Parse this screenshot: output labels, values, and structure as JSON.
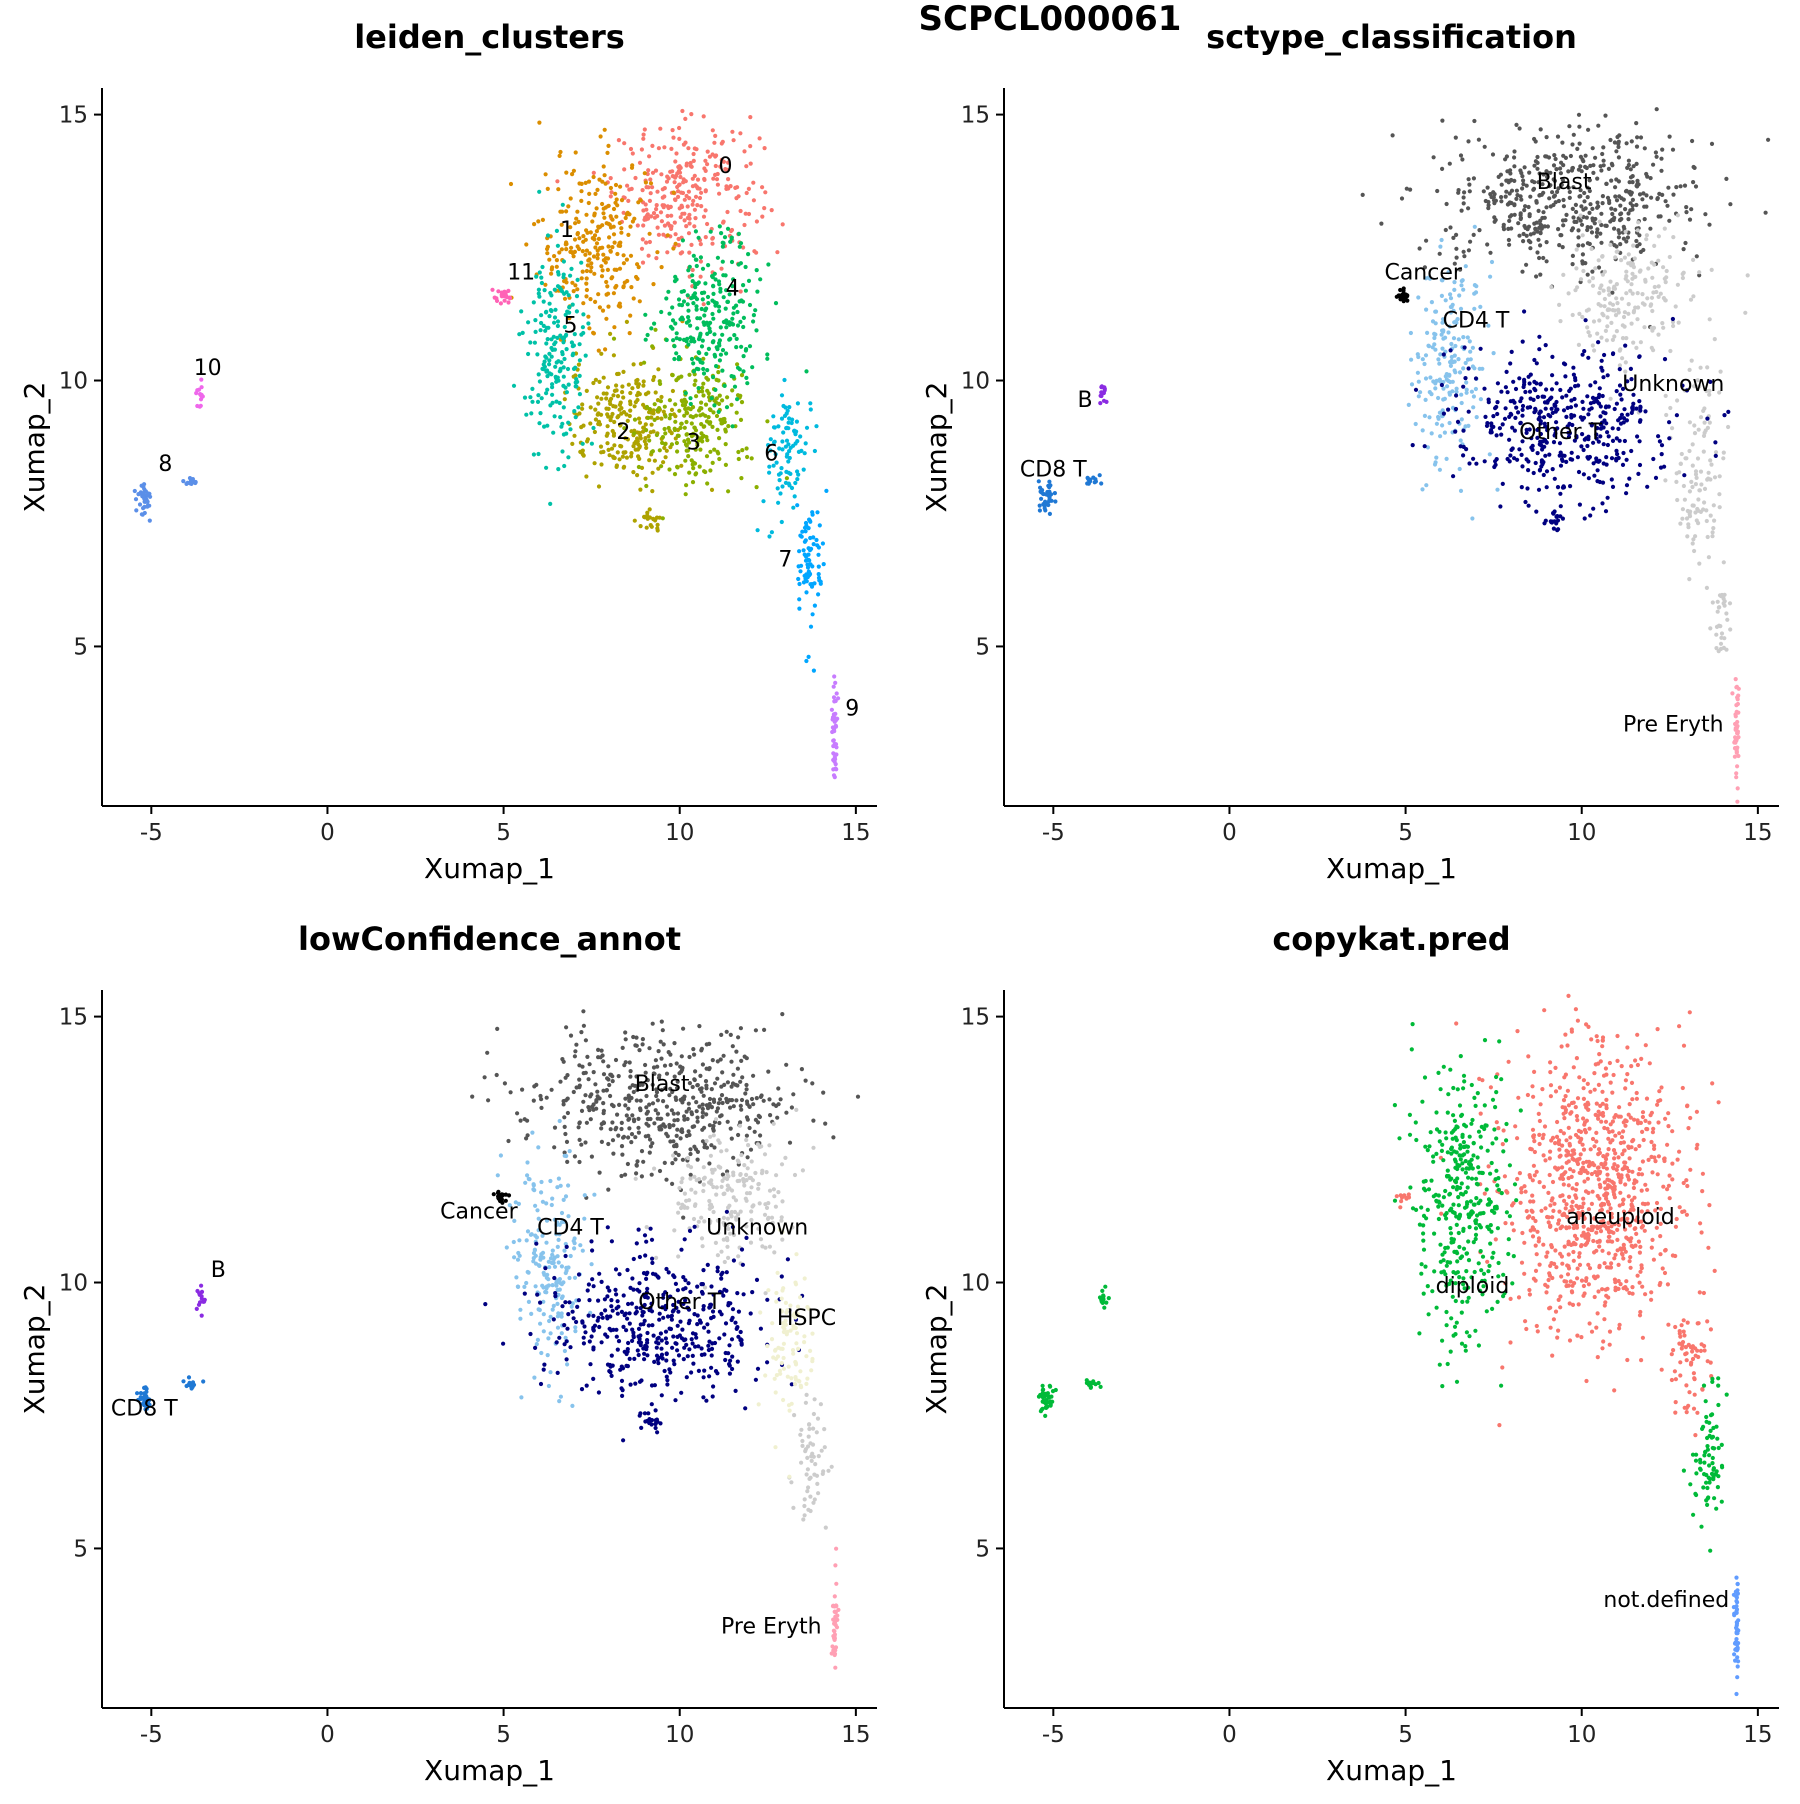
{
  "figure_title": "SCPCL000061",
  "chart_data": [
    {
      "type": "scatter",
      "title": "leiden_clusters",
      "xlabel": "Xumap_1",
      "ylabel": "Xumap_2",
      "xlim": [
        -6.4,
        15.6
      ],
      "ylim": [
        2.0,
        15.5
      ],
      "xticks": [
        -5,
        0,
        5,
        10,
        15
      ],
      "xtick_labels": [
        "-5",
        "0",
        "5",
        "10",
        "15"
      ],
      "yticks": [
        5,
        10,
        15
      ],
      "ytick_labels": [
        "5",
        "10",
        "15"
      ],
      "legend": "none",
      "groups": [
        {
          "name": "0",
          "color": "#F8766D",
          "label": "0",
          "label_pos": [
            11.3,
            13.9
          ],
          "regions": [
            [
              10.2,
              13.5,
              1.4,
              0.9,
              300
            ]
          ]
        },
        {
          "name": "1",
          "color": "#DB8E00",
          "label": "1",
          "label_pos": [
            6.8,
            12.7
          ],
          "regions": [
            [
              7.6,
              12.6,
              1.1,
              1.1,
              260
            ]
          ]
        },
        {
          "name": "2",
          "color": "#AEA200",
          "label": "2",
          "label_pos": [
            8.4,
            8.9
          ],
          "regions": [
            [
              8.5,
              9.2,
              1.1,
              0.8,
              240
            ],
            [
              9.2,
              7.4,
              0.2,
              0.15,
              20
            ]
          ]
        },
        {
          "name": "3",
          "color": "#8BAF00",
          "label": "3",
          "label_pos": [
            10.4,
            8.7
          ],
          "regions": [
            [
              10.5,
              9.2,
              1.0,
              0.8,
              230
            ]
          ]
        },
        {
          "name": "4",
          "color": "#00BD5C",
          "label": "4",
          "label_pos": [
            11.5,
            11.6
          ],
          "regions": [
            [
              10.9,
              11.2,
              1.0,
              1.0,
              260
            ]
          ]
        },
        {
          "name": "5",
          "color": "#00C1A7",
          "label": "5",
          "label_pos": [
            6.9,
            10.9
          ],
          "regions": [
            [
              6.5,
              10.6,
              0.6,
              1.2,
              200
            ]
          ]
        },
        {
          "name": "6",
          "color": "#00BADE",
          "label": "6",
          "label_pos": [
            12.6,
            8.5
          ],
          "regions": [
            [
              13.1,
              8.6,
              0.4,
              0.8,
              90
            ]
          ]
        },
        {
          "name": "7",
          "color": "#00A6FF",
          "label": "7",
          "label_pos": [
            13.0,
            6.5
          ],
          "regions": [
            [
              13.7,
              6.6,
              0.25,
              0.9,
              80
            ]
          ]
        },
        {
          "name": "8",
          "color": "#5B8FE8",
          "label": "8",
          "label_pos": [
            -4.6,
            8.3
          ],
          "regions": [
            [
              -5.2,
              7.8,
              0.15,
              0.2,
              40
            ],
            [
              -3.9,
              8.1,
              0.15,
              0.07,
              14
            ]
          ]
        },
        {
          "name": "9",
          "color": "#C77CFF",
          "label": "9",
          "label_pos": [
            14.9,
            3.7
          ],
          "regions": [
            [
              14.4,
              3.5,
              0.05,
              0.7,
              45
            ]
          ]
        },
        {
          "name": "10",
          "color": "#EF67EB",
          "label": "10",
          "label_pos": [
            -3.4,
            10.1
          ],
          "regions": [
            [
              -3.6,
              9.7,
              0.08,
              0.15,
              14
            ]
          ]
        },
        {
          "name": "11",
          "color": "#FF63B6",
          "label": "11",
          "label_pos": [
            5.5,
            11.9
          ],
          "regions": [
            [
              4.95,
              11.6,
              0.15,
              0.08,
              22
            ]
          ]
        }
      ]
    },
    {
      "type": "scatter",
      "title": "sctype_classification",
      "xlabel": "Xumap_1",
      "ylabel": "Xumap_2",
      "xlim": [
        -6.4,
        15.6
      ],
      "ylim": [
        2.0,
        15.5
      ],
      "xticks": [
        -5,
        0,
        5,
        10,
        15
      ],
      "xtick_labels": [
        "-5",
        "0",
        "5",
        "10",
        "15"
      ],
      "yticks": [
        5,
        10,
        15
      ],
      "ytick_labels": [
        "5",
        "10",
        "15"
      ],
      "legend": "none",
      "groups": [
        {
          "name": "Blast",
          "color": "#555555",
          "label": "Blast",
          "label_pos": [
            9.5,
            13.6
          ],
          "regions": [
            [
              9.6,
              13.4,
              2.5,
              0.9,
              520
            ]
          ]
        },
        {
          "name": "Unknown",
          "color": "#CCCCCC",
          "label": "Unknown",
          "label_pos": [
            12.6,
            9.8
          ],
          "regions": [
            [
              11.3,
              11.6,
              1.2,
              0.8,
              200
            ],
            [
              13.3,
              8.3,
              0.5,
              1.4,
              120
            ],
            [
              14.0,
              5.6,
              0.15,
              0.6,
              30
            ]
          ]
        },
        {
          "name": "CD4 T",
          "color": "#87C3EC",
          "label": "CD4 T",
          "label_pos": [
            7.0,
            11.0
          ],
          "regions": [
            [
              6.3,
              10.3,
              0.7,
              1.3,
              200
            ]
          ]
        },
        {
          "name": "CD8 T",
          "color": "#1F78D4",
          "label": "CD8 T",
          "label_pos": [
            -5.0,
            8.2
          ],
          "regions": [
            [
              -5.2,
              7.8,
              0.15,
              0.2,
              40
            ],
            [
              -3.9,
              8.1,
              0.15,
              0.07,
              14
            ]
          ]
        },
        {
          "name": "Other T",
          "color": "#000080",
          "label": "Other T",
          "label_pos": [
            9.4,
            8.9
          ],
          "regions": [
            [
              9.4,
              9.2,
              2.1,
              1.0,
              450
            ],
            [
              9.2,
              7.4,
              0.2,
              0.15,
              20
            ]
          ]
        },
        {
          "name": "B",
          "color": "#8A2BE2",
          "label": "B",
          "label_pos": [
            -4.1,
            9.5
          ],
          "regions": [
            [
              -3.6,
              9.7,
              0.08,
              0.15,
              14
            ]
          ]
        },
        {
          "name": "Cancer",
          "color": "#000000",
          "label": "Cancer",
          "label_pos": [
            5.5,
            11.9
          ],
          "regions": [
            [
              4.95,
              11.6,
              0.15,
              0.08,
              22
            ]
          ]
        },
        {
          "name": "Pre Eryth",
          "color": "#FFA0B4",
          "label": "Pre Eryth",
          "label_pos": [
            12.6,
            3.4
          ],
          "regions": [
            [
              14.4,
              3.5,
              0.05,
              0.7,
              45
            ]
          ]
        }
      ]
    },
    {
      "type": "scatter",
      "title": "lowConfidence_annot",
      "xlabel": "Xumap_1",
      "ylabel": "Xumap_2",
      "xlim": [
        -6.4,
        15.6
      ],
      "ylim": [
        2.0,
        15.5
      ],
      "xticks": [
        -5,
        0,
        5,
        10,
        15
      ],
      "xtick_labels": [
        "-5",
        "0",
        "5",
        "10",
        "15"
      ],
      "yticks": [
        5,
        10,
        15
      ],
      "ytick_labels": [
        "5",
        "10",
        "15"
      ],
      "legend": "none",
      "groups": [
        {
          "name": "Blast",
          "color": "#555555",
          "label": "Blast",
          "label_pos": [
            9.5,
            13.6
          ],
          "regions": [
            [
              9.6,
              13.4,
              2.5,
              0.9,
              520
            ]
          ]
        },
        {
          "name": "Unknown",
          "color": "#CCCCCC",
          "label": "Unknown",
          "label_pos": [
            12.2,
            10.9
          ],
          "regions": [
            [
              11.3,
              11.6,
              1.2,
              0.8,
              200
            ],
            [
              13.7,
              6.6,
              0.3,
              0.9,
              60
            ]
          ]
        },
        {
          "name": "CD4 T",
          "color": "#87C3EC",
          "label": "CD4 T",
          "label_pos": [
            6.9,
            10.9
          ],
          "regions": [
            [
              6.3,
              10.3,
              0.7,
              1.3,
              200
            ]
          ]
        },
        {
          "name": "CD8 T",
          "color": "#1F78D4",
          "label": "CD8 T",
          "label_pos": [
            -5.2,
            7.5
          ],
          "regions": [
            [
              -5.2,
              7.8,
              0.15,
              0.2,
              40
            ],
            [
              -3.9,
              8.1,
              0.15,
              0.07,
              14
            ]
          ]
        },
        {
          "name": "Other T",
          "color": "#000080",
          "label": "Other T",
          "label_pos": [
            10.0,
            9.5
          ],
          "regions": [
            [
              9.4,
              9.2,
              2.1,
              1.0,
              450
            ],
            [
              9.2,
              7.4,
              0.2,
              0.15,
              20
            ]
          ]
        },
        {
          "name": "HSPC",
          "color": "#F0F0D0",
          "label": "HSPC",
          "label_pos": [
            13.6,
            9.2
          ],
          "regions": [
            [
              13.1,
              8.9,
              0.5,
              1.0,
              100
            ]
          ]
        },
        {
          "name": "B",
          "color": "#8A2BE2",
          "label": "B",
          "label_pos": [
            -3.1,
            10.1
          ],
          "regions": [
            [
              -3.6,
              9.7,
              0.08,
              0.15,
              14
            ]
          ]
        },
        {
          "name": "Cancer",
          "color": "#000000",
          "label": "Cancer",
          "label_pos": [
            4.3,
            11.2
          ],
          "regions": [
            [
              4.95,
              11.6,
              0.15,
              0.08,
              22
            ]
          ]
        },
        {
          "name": "Pre Eryth",
          "color": "#FFA0B4",
          "label": "Pre Eryth",
          "label_pos": [
            12.6,
            3.4
          ],
          "regions": [
            [
              14.4,
              3.5,
              0.05,
              0.7,
              45
            ]
          ]
        }
      ]
    },
    {
      "type": "scatter",
      "title": "copykat.pred",
      "xlabel": "Xumap_1",
      "ylabel": "Xumap_2",
      "xlim": [
        -6.4,
        15.6
      ],
      "ylim": [
        2.0,
        15.5
      ],
      "xticks": [
        -5,
        0,
        5,
        10,
        15
      ],
      "xtick_labels": [
        "-5",
        "0",
        "5",
        "10",
        "15"
      ],
      "yticks": [
        5,
        10,
        15
      ],
      "ytick_labels": [
        "5",
        "10",
        "15"
      ],
      "legend": "none",
      "groups": [
        {
          "name": "aneuploid",
          "color": "#F8766D",
          "label": "aneuploid",
          "label_pos": [
            11.1,
            11.1
          ],
          "regions": [
            [
              10.3,
              11.8,
              1.8,
              1.9,
              900
            ],
            [
              13.1,
              8.6,
              0.4,
              0.8,
              60
            ],
            [
              4.95,
              11.6,
              0.15,
              0.08,
              10
            ]
          ]
        },
        {
          "name": "diploid",
          "color": "#00BA38",
          "label": "diploid",
          "label_pos": [
            6.9,
            9.8
          ],
          "regions": [
            [
              6.6,
              11.4,
              0.9,
              1.8,
              380
            ],
            [
              13.6,
              6.6,
              0.3,
              1.0,
              80
            ],
            [
              -5.2,
              7.8,
              0.15,
              0.2,
              40
            ],
            [
              -3.9,
              8.1,
              0.15,
              0.07,
              14
            ],
            [
              -3.6,
              9.7,
              0.08,
              0.15,
              14
            ]
          ]
        },
        {
          "name": "not.defined",
          "color": "#619CFF",
          "label": "not.defined",
          "label_pos": [
            12.4,
            3.9
          ],
          "regions": [
            [
              14.4,
              3.5,
              0.05,
              0.7,
              45
            ]
          ]
        }
      ]
    }
  ]
}
